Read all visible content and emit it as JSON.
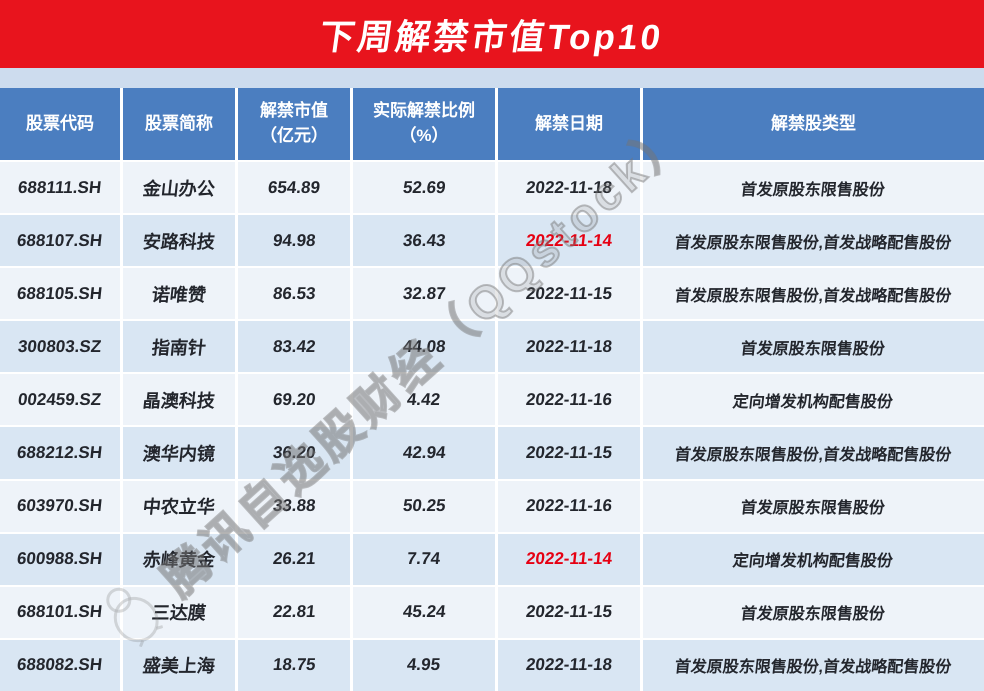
{
  "title": "下周解禁市值Top10",
  "watermark": {
    "text": "腾讯自选股财经（QQstock）",
    "logo": "penguin-logo"
  },
  "colors": {
    "page_bg": "#cddcee",
    "title_bg": "#e8141d",
    "header_bg": "#4b7ec0",
    "row_light": "#eef3f9",
    "row_dark": "#d9e6f3",
    "text": "#23262d",
    "date_red": "#e60012"
  },
  "chart_data": {
    "type": "table",
    "title": "下周解禁市值Top10",
    "columns": [
      "股票代码",
      "股票简称",
      "解禁市值\n（亿元）",
      "实际解禁比例\n（%）",
      "解禁日期",
      "解禁股类型"
    ],
    "rows": [
      {
        "code": "688111.SH",
        "name": "金山办公",
        "value": "654.89",
        "ratio": "52.69",
        "date": "2022-11-18",
        "date_red": false,
        "type": "首发原股东限售股份"
      },
      {
        "code": "688107.SH",
        "name": "安路科技",
        "value": "94.98",
        "ratio": "36.43",
        "date": "2022-11-14",
        "date_red": true,
        "type": "首发原股东限售股份,首发战略配售股份"
      },
      {
        "code": "688105.SH",
        "name": "诺唯赞",
        "value": "86.53",
        "ratio": "32.87",
        "date": "2022-11-15",
        "date_red": false,
        "type": "首发原股东限售股份,首发战略配售股份"
      },
      {
        "code": "300803.SZ",
        "name": "指南针",
        "value": "83.42",
        "ratio": "44.08",
        "date": "2022-11-18",
        "date_red": false,
        "type": "首发原股东限售股份"
      },
      {
        "code": "002459.SZ",
        "name": "晶澳科技",
        "value": "69.20",
        "ratio": "4.42",
        "date": "2022-11-16",
        "date_red": false,
        "type": "定向增发机构配售股份"
      },
      {
        "code": "688212.SH",
        "name": "澳华内镜",
        "value": "36.20",
        "ratio": "42.94",
        "date": "2022-11-15",
        "date_red": false,
        "type": "首发原股东限售股份,首发战略配售股份"
      },
      {
        "code": "603970.SH",
        "name": "中农立华",
        "value": "33.88",
        "ratio": "50.25",
        "date": "2022-11-16",
        "date_red": false,
        "type": "首发原股东限售股份"
      },
      {
        "code": "600988.SH",
        "name": "赤峰黄金",
        "value": "26.21",
        "ratio": "7.74",
        "date": "2022-11-14",
        "date_red": true,
        "type": "定向增发机构配售股份"
      },
      {
        "code": "688101.SH",
        "name": "三达膜",
        "value": "22.81",
        "ratio": "45.24",
        "date": "2022-11-15",
        "date_red": false,
        "type": "首发原股东限售股份"
      },
      {
        "code": "688082.SH",
        "name": "盛美上海",
        "value": "18.75",
        "ratio": "4.95",
        "date": "2022-11-18",
        "date_red": false,
        "type": "首发原股东限售股份,首发战略配售股份"
      }
    ]
  }
}
